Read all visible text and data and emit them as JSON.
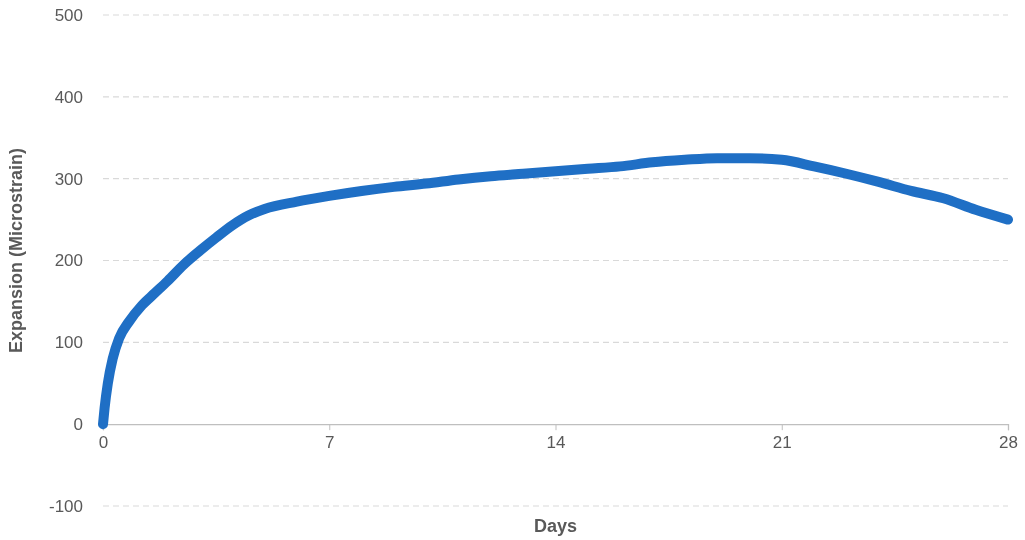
{
  "chart_data": {
    "type": "line",
    "xlabel": "Days",
    "ylabel": "Expansion (Microstrain)",
    "xlim": [
      0,
      28
    ],
    "xticks": [
      0,
      7,
      14,
      21,
      28
    ],
    "ylim": [
      -100,
      500
    ],
    "yticks": [
      -100,
      0,
      100,
      200,
      300,
      400,
      500
    ],
    "grid": "y",
    "line_style": "solid",
    "series": [
      {
        "color": "#1f6fc5",
        "x": [
          0,
          0.05,
          0.15,
          0.3,
          0.5,
          0.8,
          1.2,
          1.6,
          2,
          2.5,
          3,
          3.5,
          4,
          4.5,
          5,
          6,
          7,
          8,
          9,
          10,
          11,
          12,
          13,
          14,
          15,
          16,
          17,
          18,
          19,
          20,
          21,
          22,
          23,
          24,
          25,
          26,
          27,
          28
        ],
        "values": [
          0,
          20,
          50,
          80,
          105,
          125,
          145,
          160,
          175,
          195,
          212,
          228,
          243,
          255,
          263,
          272,
          279,
          285,
          290,
          294,
          299,
          303,
          306,
          309,
          312,
          315,
          320,
          323,
          325,
          325,
          323,
          315,
          306,
          296,
          285,
          276,
          262,
          250
        ]
      }
    ]
  }
}
